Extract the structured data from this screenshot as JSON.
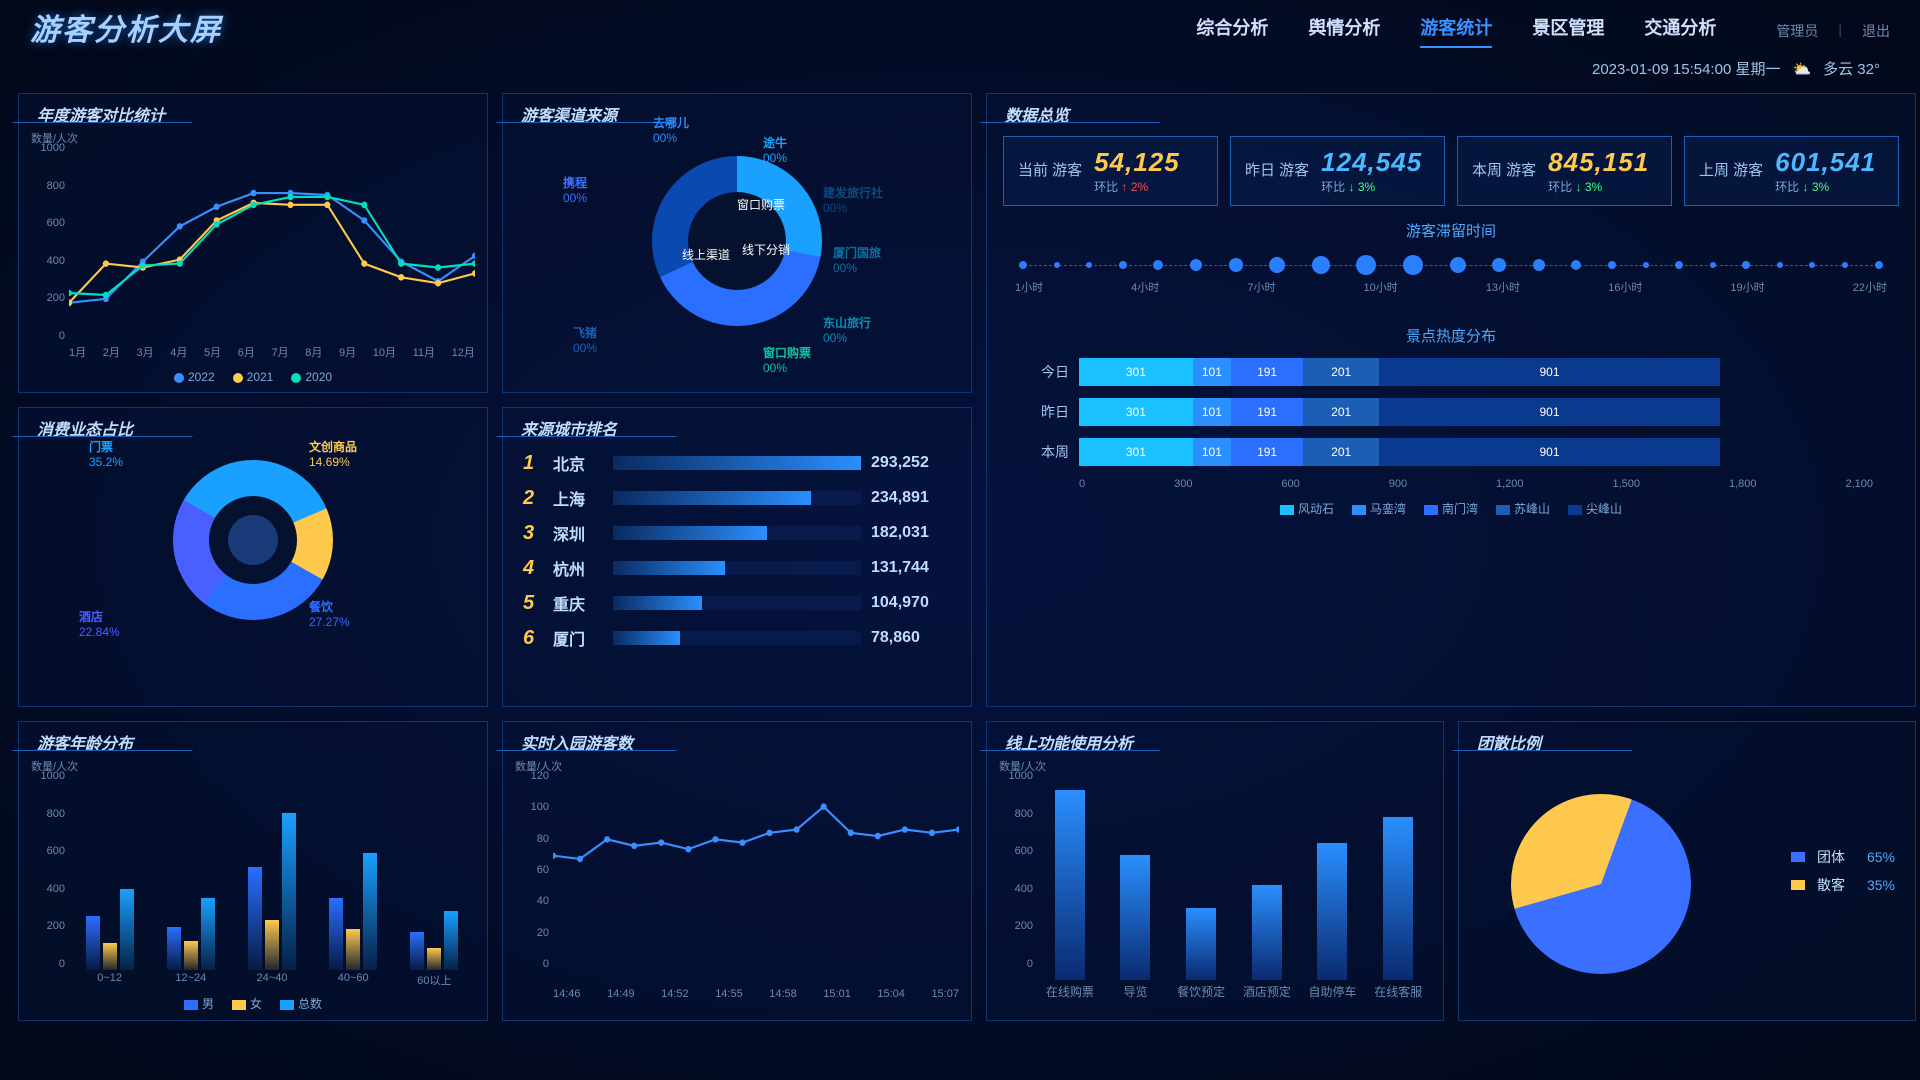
{
  "header": {
    "title": "游客分析大屏",
    "nav": [
      "综合分析",
      "舆情分析",
      "游客统计",
      "景区管理",
      "交通分析"
    ],
    "active_nav": 2,
    "aux": [
      "管理员",
      "退出"
    ],
    "datetime": "2023-01-09  15:54:00  星期一",
    "weather": "多云 32°"
  },
  "yearly": {
    "title": "年度游客对比统计",
    "y_axis_label": "数量/人次",
    "y_ticks": [
      "1000",
      "800",
      "600",
      "400",
      "200",
      "0"
    ],
    "months": [
      "1月",
      "2月",
      "3月",
      "4月",
      "5月",
      "6月",
      "7月",
      "8月",
      "9月",
      "10月",
      "11月",
      "12月"
    ],
    "series": [
      {
        "name": "2022",
        "color": "#3a8fff",
        "values": [
          200,
          220,
          410,
          590,
          690,
          760,
          760,
          750,
          620,
          410,
          310,
          440
        ]
      },
      {
        "name": "2021",
        "color": "#ffc94d",
        "values": [
          200,
          400,
          380,
          420,
          620,
          710,
          700,
          700,
          400,
          330,
          300,
          350
        ]
      },
      {
        "name": "2020",
        "color": "#00e0c0",
        "values": [
          250,
          240,
          390,
          400,
          600,
          700,
          740,
          740,
          700,
          400,
          380,
          400
        ]
      }
    ]
  },
  "channel": {
    "title": "游客渠道来源",
    "inner_segments": [
      {
        "name": "窗口购票",
        "color": "#1aa0ff",
        "pct": 28
      },
      {
        "name": "线上渠道",
        "color": "#2a6fff",
        "pct": 40
      },
      {
        "name": "线下分销",
        "color": "#0a4ab0",
        "pct": 32
      }
    ],
    "outer_labels": [
      {
        "name": "途牛",
        "pct": "00%",
        "color": "#1aa0ff"
      },
      {
        "name": "去哪儿",
        "pct": "00%",
        "color": "#2a8fff"
      },
      {
        "name": "携程",
        "pct": "00%",
        "color": "#3a6fff"
      },
      {
        "name": "飞猪",
        "pct": "00%",
        "color": "#1a5fb4"
      },
      {
        "name": "窗口购票",
        "pct": "00%",
        "color": "#0fc0a0"
      },
      {
        "name": "东山旅行",
        "pct": "00%",
        "color": "#0a8fb0"
      },
      {
        "name": "厦门国旅",
        "pct": "00%",
        "color": "#0a6fa0"
      },
      {
        "name": "建发旅行社",
        "pct": "00%",
        "color": "#0a4a80"
      }
    ]
  },
  "consume": {
    "title": "消费业态占比",
    "segments": [
      {
        "name": "门票",
        "pct": "35.2%",
        "color": "#1aa0ff",
        "deg": 126.7
      },
      {
        "name": "文创商品",
        "pct": "14.69%",
        "color": "#ffc94d",
        "deg": 52.9
      },
      {
        "name": "餐饮",
        "pct": "27.27%",
        "color": "#2a6fff",
        "deg": 98.2
      },
      {
        "name": "酒店",
        "pct": "22.84%",
        "color": "#4a5fff",
        "deg": 82.2
      }
    ]
  },
  "ranking": {
    "title": "来源城市排名",
    "rows": [
      {
        "n": "1",
        "city": "北京",
        "val": "293,252",
        "pct": 100
      },
      {
        "n": "2",
        "city": "上海",
        "val": "234,891",
        "pct": 80
      },
      {
        "n": "3",
        "city": "深圳",
        "val": "182,031",
        "pct": 62
      },
      {
        "n": "4",
        "city": "杭州",
        "val": "131,744",
        "pct": 45
      },
      {
        "n": "5",
        "city": "重庆",
        "val": "104,970",
        "pct": 36
      },
      {
        "n": "6",
        "city": "厦门",
        "val": "78,860",
        "pct": 27
      }
    ]
  },
  "overview": {
    "title": "数据总览",
    "cards": [
      {
        "label": "当前\n游客",
        "value": "54,125",
        "cls": "gold",
        "sub": "环比",
        "arrow": "↑",
        "apct": "2%",
        "acls": "up"
      },
      {
        "label": "昨日\n游客",
        "value": "124,545",
        "cls": "blue",
        "sub": "环比",
        "arrow": "↓",
        "apct": "3%",
        "acls": "down"
      },
      {
        "label": "本周\n游客",
        "value": "845,151",
        "cls": "gold",
        "sub": "环比",
        "arrow": "↓",
        "apct": "3%",
        "acls": "down"
      },
      {
        "label": "上周\n游客",
        "value": "601,541",
        "cls": "blue",
        "sub": "环比",
        "arrow": "↓",
        "apct": "3%",
        "acls": "down"
      }
    ],
    "stay_title": "游客滞留时间",
    "stay_hours": [
      "1小时",
      "4小时",
      "7小时",
      "10小时",
      "13小时",
      "16小时",
      "19小时",
      "22小时"
    ],
    "stay_sizes": [
      8,
      6,
      6,
      8,
      10,
      12,
      14,
      16,
      18,
      20,
      20,
      16,
      14,
      12,
      10,
      8,
      6,
      8,
      6,
      8,
      6,
      6,
      6,
      8
    ],
    "heat_title": "景点热度分布",
    "heat_rows": [
      {
        "label": "今日",
        "segs": [
          {
            "v": 301,
            "c": "#1ac0ff"
          },
          {
            "v": 101,
            "c": "#2a8fff"
          },
          {
            "v": 191,
            "c": "#2a6fff"
          },
          {
            "v": 201,
            "c": "#1a5fb4"
          },
          {
            "v": 901,
            "c": "#0a3a90"
          }
        ]
      },
      {
        "label": "昨日",
        "segs": [
          {
            "v": 301,
            "c": "#1ac0ff"
          },
          {
            "v": 101,
            "c": "#2a8fff"
          },
          {
            "v": 191,
            "c": "#2a6fff"
          },
          {
            "v": 201,
            "c": "#1a5fb4"
          },
          {
            "v": 901,
            "c": "#0a3a90"
          }
        ]
      },
      {
        "label": "本周",
        "segs": [
          {
            "v": 301,
            "c": "#1ac0ff"
          },
          {
            "v": 101,
            "c": "#2a8fff"
          },
          {
            "v": 191,
            "c": "#2a6fff"
          },
          {
            "v": 201,
            "c": "#1a5fb4"
          },
          {
            "v": 901,
            "c": "#0a3a90"
          }
        ]
      }
    ],
    "heat_axis": [
      "0",
      "300",
      "600",
      "900",
      "1,200",
      "1,500",
      "1,800",
      "2,100"
    ],
    "heat_legend": [
      {
        "c": "#1ac0ff",
        "n": "风动石"
      },
      {
        "c": "#2a8fff",
        "n": "马銮湾"
      },
      {
        "c": "#2a6fff",
        "n": "南门湾"
      },
      {
        "c": "#1a5fb4",
        "n": "苏峰山"
      },
      {
        "c": "#0a3a90",
        "n": "尖峰山"
      }
    ]
  },
  "age": {
    "title": "游客年龄分布",
    "y_axis_label": "数量/人次",
    "y_ticks": [
      "1000",
      "800",
      "600",
      "400",
      "200",
      "0"
    ],
    "groups": [
      "0~12",
      "12~24",
      "24~40",
      "40~60",
      "60以上"
    ],
    "series": [
      {
        "name": "男",
        "color": "#2a6fff",
        "values": [
          300,
          240,
          570,
          400,
          210
        ]
      },
      {
        "name": "女",
        "color": "#ffc94d",
        "values": [
          150,
          160,
          280,
          230,
          120
        ]
      },
      {
        "name": "总数",
        "color": "#1aa0ff",
        "values": [
          450,
          400,
          870,
          650,
          330
        ]
      }
    ]
  },
  "realtime": {
    "title": "实时入园游客数",
    "y_axis_label": "数量/人次",
    "y_ticks": [
      "120",
      "100",
      "80",
      "60",
      "40",
      "20",
      "0"
    ],
    "x_ticks": [
      "14:46",
      "14:49",
      "14:52",
      "14:55",
      "14:58",
      "15:01",
      "15:04",
      "15:07"
    ],
    "color": "#3a8fff",
    "values": [
      70,
      68,
      80,
      76,
      78,
      74,
      80,
      78,
      84,
      86,
      100,
      84,
      82,
      86,
      84,
      86
    ]
  },
  "online": {
    "title": "线上功能使用分析",
    "y_axis_label": "数量/人次",
    "y_ticks": [
      "1000",
      "800",
      "600",
      "400",
      "200",
      "0"
    ],
    "cats": [
      "在线购票",
      "导览",
      "餐饮预定",
      "酒店预定",
      "自助停车",
      "在线客服"
    ],
    "color_top": "#2a8fff",
    "color_bot": "#0a2a70",
    "values": [
      1000,
      660,
      380,
      500,
      720,
      860
    ]
  },
  "group": {
    "title": "团散比例",
    "segments": [
      {
        "name": "团体",
        "pct": "65%",
        "color": "#3a6fff",
        "deg": 234
      },
      {
        "name": "散客",
        "pct": "35%",
        "color": "#ffc94d",
        "deg": 126
      }
    ]
  }
}
